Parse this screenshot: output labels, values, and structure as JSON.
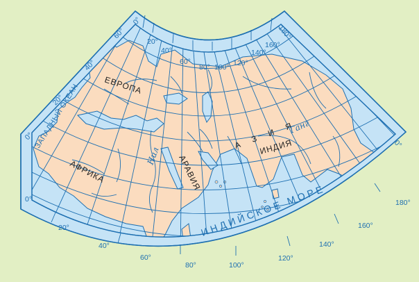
{
  "map": {
    "colors": {
      "background": "#e2efc4",
      "water": "#c5e3f6",
      "land": "#fbdcbf",
      "grid": "#1d6fb1",
      "coast": "#1d6fb1"
    },
    "meridian_labels_top": [
      "0°",
      "20°",
      "40°",
      "60°",
      "80°",
      "100°",
      "120°",
      "140°",
      "160°",
      "180°"
    ],
    "meridian_labels_bottom": [
      "20°",
      "40°",
      "60°",
      "80°",
      "100°",
      "120°",
      "140°",
      "160°",
      "180°"
    ],
    "parallel_labels_left": [
      "60°",
      "40°",
      "20°",
      "0°",
      "0°"
    ],
    "parallel_labels_right": [
      "0°"
    ],
    "regions": {
      "europe": "ЕВРОПА",
      "africa": "АФРИКА",
      "asia": "АЗИЯ",
      "arabia": "АРАВИЯ",
      "india": "ИНДИЯ"
    },
    "seas": {
      "western_ocean": "ЗАПАДНЫЙ ОКЕАН",
      "indian_sea": "ИНДИЙСКОЕ МОРЕ"
    },
    "rivers": {
      "nile": "Нил",
      "ganges": "Ганг"
    }
  }
}
